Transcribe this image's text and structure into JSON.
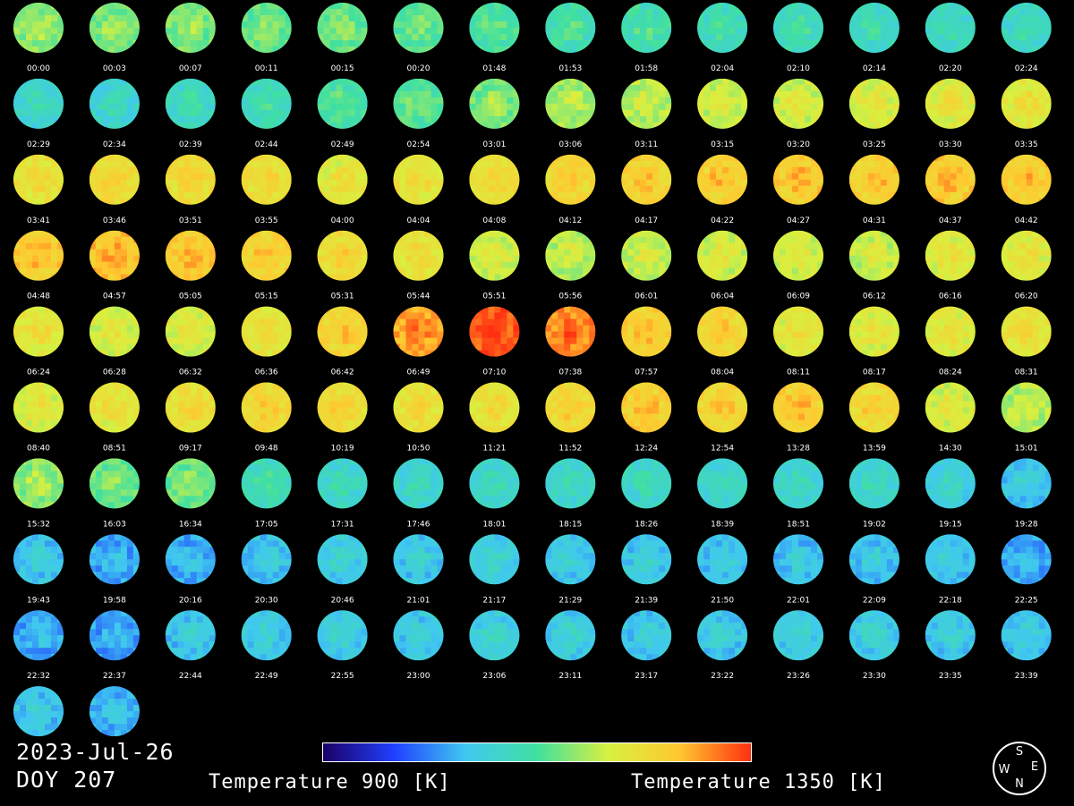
{
  "colorbar": {
    "min_label": "Temperature 900 [K]",
    "max_label": "Temperature 1350 [K]",
    "min_value": 900,
    "max_value": 1350,
    "stops": [
      "#1a0066",
      "#2040ff",
      "#40c8f0",
      "#40e0a0",
      "#d8f040",
      "#ffc830",
      "#ff3010"
    ]
  },
  "date": "2023-Jul-26",
  "doy": "DOY 207",
  "compass": {
    "top": "S",
    "left": "W",
    "right": "E",
    "bottom": "N"
  },
  "chart_data": {
    "type": "heatmap",
    "title": "",
    "units": "K",
    "frames": [
      {
        "time": "00:00",
        "temp": 1170
      },
      {
        "time": "00:03",
        "temp": 1160
      },
      {
        "time": "00:07",
        "temp": 1160
      },
      {
        "time": "00:11",
        "temp": 1150
      },
      {
        "time": "00:15",
        "temp": 1150
      },
      {
        "time": "00:20",
        "temp": 1140
      },
      {
        "time": "01:48",
        "temp": 1130
      },
      {
        "time": "01:53",
        "temp": 1120
      },
      {
        "time": "01:58",
        "temp": 1120
      },
      {
        "time": "02:04",
        "temp": 1110
      },
      {
        "time": "02:10",
        "temp": 1110
      },
      {
        "time": "02:14",
        "temp": 1100
      },
      {
        "time": "02:20",
        "temp": 1100
      },
      {
        "time": "02:24",
        "temp": 1100
      },
      {
        "time": "02:29",
        "temp": 1090
      },
      {
        "time": "02:34",
        "temp": 1090
      },
      {
        "time": "02:39",
        "temp": 1100
      },
      {
        "time": "02:44",
        "temp": 1110
      },
      {
        "time": "02:49",
        "temp": 1130
      },
      {
        "time": "02:54",
        "temp": 1140
      },
      {
        "time": "03:01",
        "temp": 1160
      },
      {
        "time": "03:06",
        "temp": 1180
      },
      {
        "time": "03:11",
        "temp": 1190
      },
      {
        "time": "03:15",
        "temp": 1200
      },
      {
        "time": "03:20",
        "temp": 1205
      },
      {
        "time": "03:25",
        "temp": 1215
      },
      {
        "time": "03:30",
        "temp": 1220
      },
      {
        "time": "03:35",
        "temp": 1225
      },
      {
        "time": "03:41",
        "temp": 1235
      },
      {
        "time": "03:46",
        "temp": 1245
      },
      {
        "time": "03:51",
        "temp": 1245
      },
      {
        "time": "03:55",
        "temp": 1240
      },
      {
        "time": "04:00",
        "temp": 1220
      },
      {
        "time": "04:04",
        "temp": 1230
      },
      {
        "time": "04:08",
        "temp": 1240
      },
      {
        "time": "04:12",
        "temp": 1255
      },
      {
        "time": "04:17",
        "temp": 1260
      },
      {
        "time": "04:22",
        "temp": 1265
      },
      {
        "time": "04:27",
        "temp": 1270
      },
      {
        "time": "04:31",
        "temp": 1265
      },
      {
        "time": "04:37",
        "temp": 1270
      },
      {
        "time": "04:42",
        "temp": 1270
      },
      {
        "time": "04:48",
        "temp": 1270
      },
      {
        "time": "04:57",
        "temp": 1280
      },
      {
        "time": "05:05",
        "temp": 1270
      },
      {
        "time": "05:15",
        "temp": 1260
      },
      {
        "time": "05:31",
        "temp": 1245
      },
      {
        "time": "05:44",
        "temp": 1230
      },
      {
        "time": "05:51",
        "temp": 1205
      },
      {
        "time": "05:56",
        "temp": 1190
      },
      {
        "time": "06:01",
        "temp": 1195
      },
      {
        "time": "06:04",
        "temp": 1205
      },
      {
        "time": "06:09",
        "temp": 1205
      },
      {
        "time": "06:12",
        "temp": 1200
      },
      {
        "time": "06:16",
        "temp": 1215
      },
      {
        "time": "06:20",
        "temp": 1220
      },
      {
        "time": "06:24",
        "temp": 1225
      },
      {
        "time": "06:28",
        "temp": 1210
      },
      {
        "time": "06:32",
        "temp": 1215
      },
      {
        "time": "06:36",
        "temp": 1225
      },
      {
        "time": "06:42",
        "temp": 1260
      },
      {
        "time": "06:49",
        "temp": 1300
      },
      {
        "time": "07:10",
        "temp": 1340
      },
      {
        "time": "07:38",
        "temp": 1315
      },
      {
        "time": "07:57",
        "temp": 1265
      },
      {
        "time": "08:04",
        "temp": 1255
      },
      {
        "time": "08:11",
        "temp": 1220
      },
      {
        "time": "08:17",
        "temp": 1215
      },
      {
        "time": "08:24",
        "temp": 1220
      },
      {
        "time": "08:31",
        "temp": 1230
      },
      {
        "time": "08:40",
        "temp": 1215
      },
      {
        "time": "08:51",
        "temp": 1225
      },
      {
        "time": "09:17",
        "temp": 1240
      },
      {
        "time": "09:48",
        "temp": 1250
      },
      {
        "time": "10:19",
        "temp": 1245
      },
      {
        "time": "10:50",
        "temp": 1235
      },
      {
        "time": "11:21",
        "temp": 1235
      },
      {
        "time": "11:52",
        "temp": 1250
      },
      {
        "time": "12:24",
        "temp": 1265
      },
      {
        "time": "12:54",
        "temp": 1255
      },
      {
        "time": "13:28",
        "temp": 1265
      },
      {
        "time": "13:59",
        "temp": 1250
      },
      {
        "time": "14:30",
        "temp": 1210
      },
      {
        "time": "15:01",
        "temp": 1190
      },
      {
        "time": "15:32",
        "temp": 1170
      },
      {
        "time": "16:03",
        "temp": 1150
      },
      {
        "time": "16:34",
        "temp": 1155
      },
      {
        "time": "17:05",
        "temp": 1110
      },
      {
        "time": "17:31",
        "temp": 1095
      },
      {
        "time": "17:46",
        "temp": 1090
      },
      {
        "time": "18:01",
        "temp": 1095
      },
      {
        "time": "18:15",
        "temp": 1095
      },
      {
        "time": "18:26",
        "temp": 1095
      },
      {
        "time": "18:39",
        "temp": 1090
      },
      {
        "time": "18:51",
        "temp": 1090
      },
      {
        "time": "19:02",
        "temp": 1090
      },
      {
        "time": "19:15",
        "temp": 1075
      },
      {
        "time": "19:28",
        "temp": 1060
      },
      {
        "time": "19:43",
        "temp": 1060
      },
      {
        "time": "19:58",
        "temp": 1040
      },
      {
        "time": "20:16",
        "temp": 1040
      },
      {
        "time": "20:30",
        "temp": 1060
      },
      {
        "time": "20:46",
        "temp": 1070
      },
      {
        "time": "21:01",
        "temp": 1065
      },
      {
        "time": "21:17",
        "temp": 1070
      },
      {
        "time": "21:29",
        "temp": 1065
      },
      {
        "time": "21:39",
        "temp": 1065
      },
      {
        "time": "21:50",
        "temp": 1060
      },
      {
        "time": "22:01",
        "temp": 1055
      },
      {
        "time": "22:09",
        "temp": 1055
      },
      {
        "time": "22:18",
        "temp": 1060
      },
      {
        "time": "22:25",
        "temp": 1040
      },
      {
        "time": "22:32",
        "temp": 1040
      },
      {
        "time": "22:37",
        "temp": 1035
      },
      {
        "time": "22:44",
        "temp": 1060
      },
      {
        "time": "22:49",
        "temp": 1065
      },
      {
        "time": "22:55",
        "temp": 1070
      },
      {
        "time": "23:00",
        "temp": 1065
      },
      {
        "time": "23:06",
        "temp": 1075
      },
      {
        "time": "23:11",
        "temp": 1070
      },
      {
        "time": "23:17",
        "temp": 1060
      },
      {
        "time": "23:22",
        "temp": 1065
      },
      {
        "time": "23:26",
        "temp": 1070
      },
      {
        "time": "23:30",
        "temp": 1070
      },
      {
        "time": "23:35",
        "temp": 1065
      },
      {
        "time": "23:39",
        "temp": 1060
      },
      {
        "time": "",
        "temp": 1060
      },
      {
        "time": "",
        "temp": 1045
      }
    ]
  }
}
